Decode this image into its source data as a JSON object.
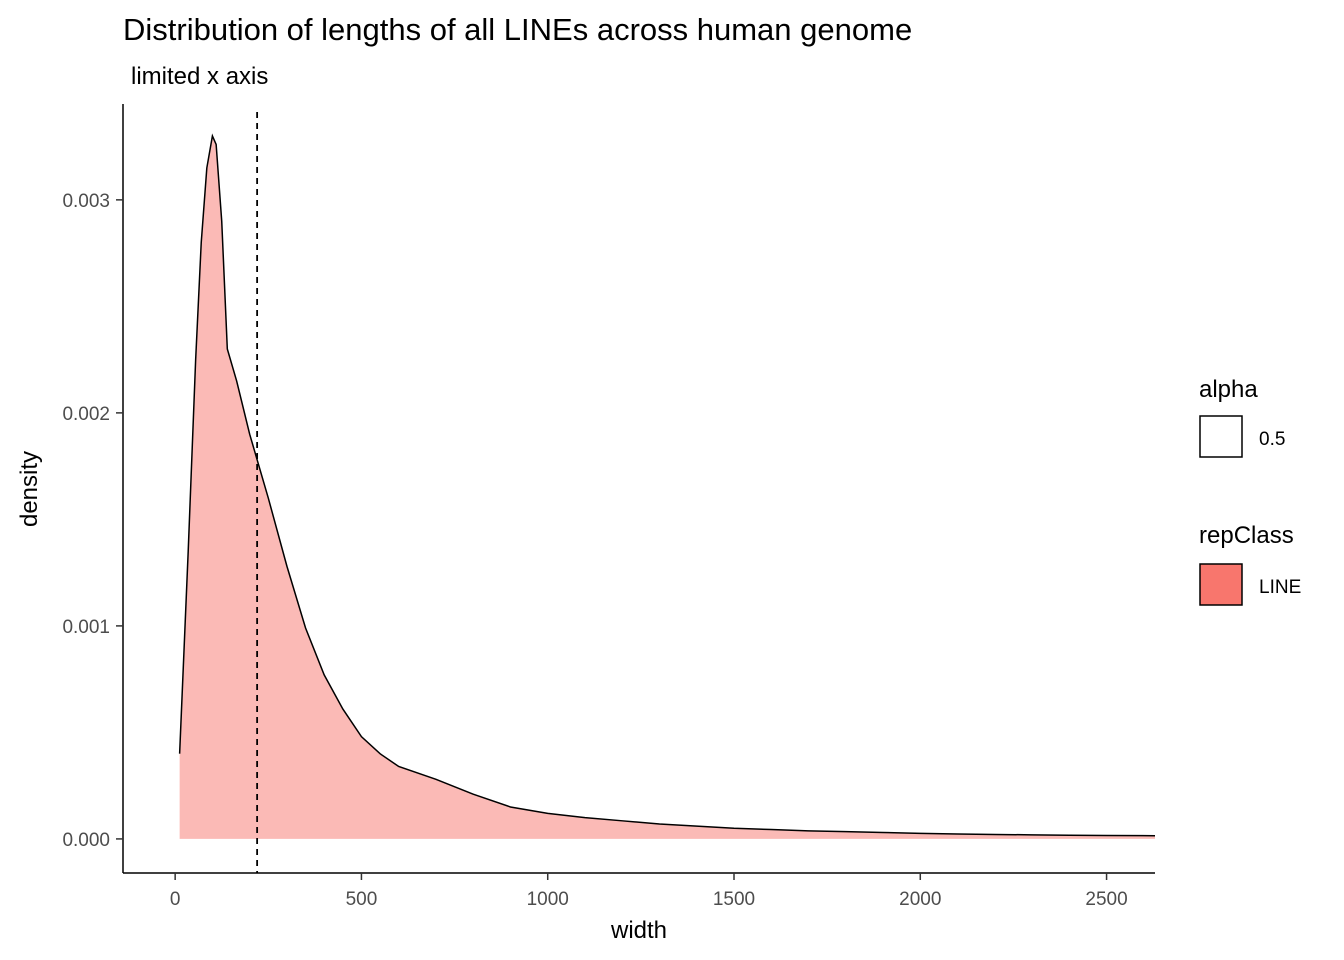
{
  "chart_data": {
    "type": "area",
    "title": "Distribution of lengths of all LINEs across human genome",
    "subtitle": "limited x axis",
    "xlabel": "width",
    "ylabel": "density",
    "xlim": [
      -140,
      2630
    ],
    "ylim": [
      -0.00016,
      0.00345
    ],
    "x_ticks": [
      0,
      500,
      1000,
      1500,
      2000,
      2500
    ],
    "y_ticks": [
      0.0,
      0.001,
      0.002,
      0.003
    ],
    "x_tick_labels": [
      "0",
      "500",
      "1000",
      "1500",
      "2000",
      "2500"
    ],
    "y_tick_labels": [
      "0.000",
      "0.001",
      "0.002",
      "0.003"
    ],
    "grid": false,
    "fill_color": "#F8766D",
    "fill_opacity": 0.5,
    "vline": {
      "x": 220,
      "style": "dashed",
      "color": "#000000"
    },
    "series": [
      {
        "x": [
          12,
          35,
          55,
          70,
          85,
          100,
          110,
          125,
          140,
          165,
          200,
          250,
          300,
          350,
          400,
          450,
          500,
          550,
          600,
          700,
          800,
          900,
          1000,
          1100,
          1200,
          1300,
          1400,
          1500,
          1600,
          1700,
          1800,
          1900,
          2000,
          2100,
          2200,
          2300,
          2400,
          2500,
          2630
        ],
        "y": [
          0.0004,
          0.00135,
          0.00225,
          0.0028,
          0.00315,
          0.0033,
          0.00326,
          0.0029,
          0.0023,
          0.00215,
          0.0019,
          0.0016,
          0.00128,
          0.00099,
          0.00077,
          0.00061,
          0.00048,
          0.0004,
          0.00034,
          0.00028,
          0.00021,
          0.00015,
          0.00012,
          0.0001,
          8.5e-05,
          7e-05,
          6e-05,
          5e-05,
          4.4e-05,
          3.8e-05,
          3.4e-05,
          3e-05,
          2.6e-05,
          2.3e-05,
          2.1e-05,
          1.9e-05,
          1.7e-05,
          1.6e-05,
          1.5e-05
        ]
      }
    ],
    "legends": [
      {
        "title": "alpha",
        "items": [
          {
            "label": "0.5",
            "color": "#ffffff"
          }
        ]
      },
      {
        "title": "repClass",
        "items": [
          {
            "label": "LINE",
            "color": "#F8766D"
          }
        ]
      }
    ]
  }
}
